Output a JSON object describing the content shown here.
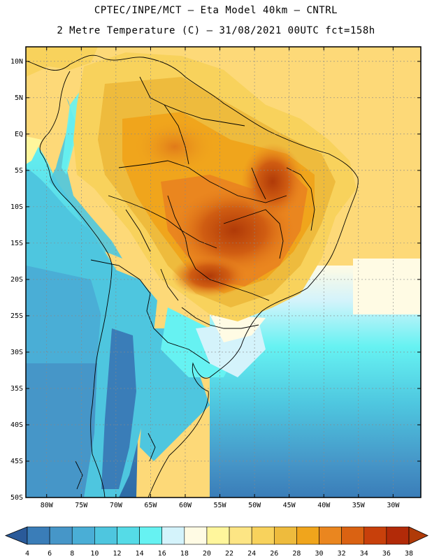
{
  "header": {
    "line1": "CPTEC/INPE/MCT –  Eta Model 40km – CNTRL",
    "line2": "2 Metre Temperature (C) – 31/08/2021 00UTC fct=158h"
  },
  "axes": {
    "lat_labels": [
      "10N",
      "5N",
      "EQ",
      "5S",
      "10S",
      "15S",
      "20S",
      "25S",
      "30S",
      "35S",
      "40S",
      "45S",
      "50S"
    ],
    "lat_values": [
      10,
      5,
      0,
      -5,
      -10,
      -15,
      -20,
      -25,
      -30,
      -35,
      -40,
      -45,
      -50
    ],
    "lon_labels": [
      "80W",
      "75W",
      "70W",
      "65W",
      "60W",
      "55W",
      "50W",
      "45W",
      "40W",
      "35W",
      "30W"
    ],
    "lon_values": [
      -80,
      -75,
      -70,
      -65,
      -60,
      -55,
      -50,
      -45,
      -40,
      -35,
      -30
    ],
    "lon_range": [
      -83,
      -26
    ],
    "lat_range": [
      -50,
      12
    ]
  },
  "colorbar": {
    "labels": [
      "4",
      "6",
      "8",
      "10",
      "12",
      "14",
      "16",
      "18",
      "20",
      "22",
      "24",
      "26",
      "28",
      "30",
      "32",
      "34",
      "36",
      "38"
    ],
    "colors": [
      "#2d6ba6",
      "#3a7db8",
      "#4696c8",
      "#4aaed6",
      "#4ec6df",
      "#55dbe7",
      "#66f2f2",
      "#d4f3fb",
      "#fffbe4",
      "#fff69c",
      "#fde584",
      "#f8d25c",
      "#eebb3d",
      "#f0a51c",
      "#ea861f",
      "#da6212",
      "#c8400b",
      "#b22a08"
    ],
    "low_color": "#2a5a99",
    "high_color": "#b03a08"
  },
  "map": {
    "background": "#fdd978",
    "ocean_warm": "#fdd978",
    "ocean_south": "#4ec6df",
    "ocean_far_south": "#2d6ba6"
  }
}
